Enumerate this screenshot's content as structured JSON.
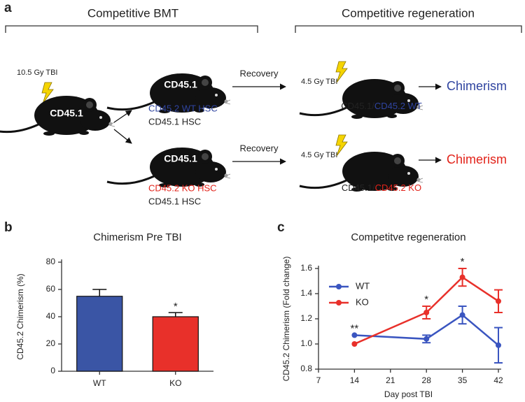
{
  "panel_labels": [
    "a",
    "b",
    "c"
  ],
  "diagram": {
    "left_title": "Competitive BMT",
    "right_title": "Competitive regeneration",
    "donor_dose": "10.5 Gy TBI",
    "donor_label": "CD45.1",
    "recipients": [
      {
        "mouse_label": "CD45.1",
        "transplant": [
          "CD45.2 WT HSC",
          "CD45.1 HSC"
        ],
        "arrow": "Recovery",
        "dose": "4.5 Gy TBI",
        "host_base": "CD45.1/",
        "host_graft": "CD45.2 WT",
        "result": "Chimerism"
      },
      {
        "mouse_label": "CD45.1",
        "transplant": [
          "CD45.2 KO HSC",
          "CD45.1 HSC"
        ],
        "arrow": "Recovery",
        "dose": "4.5 Gy TBI",
        "host_base": "CD45.1/",
        "host_graft": "CD45.2 KO",
        "result": "Chimerism"
      }
    ]
  },
  "chart_data": [
    {
      "type": "bar",
      "title": "Chimerism Pre TBI",
      "y_label": "CD45.2 Chimerism (%)",
      "categories": [
        "WT",
        "KO"
      ],
      "values": [
        55,
        40
      ],
      "errors": [
        5,
        3
      ],
      "colors": [
        "#3a55a5",
        "#e8302a"
      ],
      "significance": [
        null,
        "*"
      ],
      "ylim": [
        0,
        80
      ],
      "yticks": [
        0,
        20,
        40,
        60,
        80
      ]
    },
    {
      "type": "line",
      "title": "Competitve regeneration",
      "x_label": "Day post TBI",
      "y_label": "CD45.2 Chimerism (Fold change)",
      "x": [
        14,
        28,
        35,
        42
      ],
      "series": [
        {
          "name": "WT",
          "color": "#3a55c0",
          "values": [
            1.07,
            1.04,
            1.23,
            0.99
          ],
          "errors": [
            0,
            0.03,
            0.07,
            0.14
          ]
        },
        {
          "name": "KO",
          "color": "#e8302a",
          "values": [
            1.0,
            1.25,
            1.53,
            1.34
          ],
          "errors": [
            0,
            0.05,
            0.07,
            0.09
          ]
        }
      ],
      "significance": [
        "**",
        "*",
        "*",
        null
      ],
      "legend": "upper left",
      "xlim": [
        7,
        42
      ],
      "xticks": [
        7,
        14,
        21,
        28,
        35,
        42
      ],
      "ylim": [
        0.8,
        1.6
      ],
      "yticks": [
        {
          "value": 0.8,
          "label": "0.8"
        },
        {
          "value": 1.0,
          "label": "1.0"
        },
        {
          "value": 1.2,
          "label": "1.2"
        },
        {
          "value": 1.4,
          "label": "1.4"
        },
        {
          "value": 1.6,
          "label": "1.6"
        }
      ]
    }
  ]
}
